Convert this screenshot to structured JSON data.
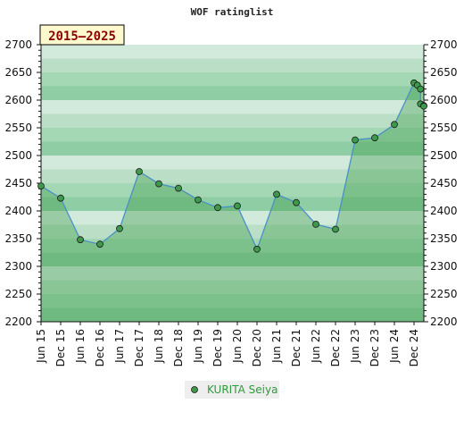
{
  "chart_data": {
    "type": "area",
    "title": "WOF ratinglist",
    "period_badge": "2015–2025",
    "ylim": [
      2200,
      2700
    ],
    "y_ticks": [
      2200,
      2250,
      2300,
      2350,
      2400,
      2450,
      2500,
      2550,
      2600,
      2650,
      2700
    ],
    "y_tick_labels": [
      "2200",
      "2250",
      "2300",
      "2350",
      "2400",
      "2450",
      "2500",
      "2550",
      "2600",
      "2650",
      "2700"
    ],
    "x_range": [
      "2015-06",
      "2025-03"
    ],
    "x_tick_labels": [
      "Jun 15",
      "Dec 15",
      "Jun 16",
      "Dec 16",
      "Jun 17",
      "Dec 17",
      "Jun 18",
      "Dec 18",
      "Jun 19",
      "Dec 19",
      "Jun 20",
      "Dec 20",
      "Jun 21",
      "Dec 21",
      "Jun 22",
      "Dec 22",
      "Jun 23",
      "Dec 23",
      "Jun 24",
      "Dec 24"
    ],
    "x_tick_dates": [
      "2015-06",
      "2015-12",
      "2016-06",
      "2016-12",
      "2017-06",
      "2017-12",
      "2018-06",
      "2018-12",
      "2019-06",
      "2019-12",
      "2020-06",
      "2020-12",
      "2021-06",
      "2021-12",
      "2022-06",
      "2022-12",
      "2023-06",
      "2023-12",
      "2024-06",
      "2024-12"
    ],
    "grid": true,
    "legend_position": "bottom-center",
    "series": [
      {
        "name": "KURITA Seiya",
        "color": "#4a90c8",
        "marker_color": "#3d9a4a",
        "x": [
          "2015-06",
          "2015-12",
          "2016-06",
          "2016-12",
          "2017-06",
          "2017-12",
          "2018-06",
          "2018-12",
          "2019-06",
          "2019-12",
          "2020-06",
          "2020-12",
          "2021-06",
          "2021-12",
          "2022-06",
          "2022-12",
          "2023-06",
          "2023-12",
          "2024-06",
          "2024-12",
          "2025-01",
          "2025-02",
          "2025-02",
          "2025-03",
          "2025-03"
        ],
        "values": [
          2445,
          2423,
          2348,
          2340,
          2368,
          2471,
          2449,
          2441,
          2420,
          2406,
          2409,
          2331,
          2430,
          2415,
          2376,
          2367,
          2528,
          2532,
          2556,
          2631,
          2627,
          2620,
          2593,
          2590,
          2589
        ]
      }
    ]
  }
}
